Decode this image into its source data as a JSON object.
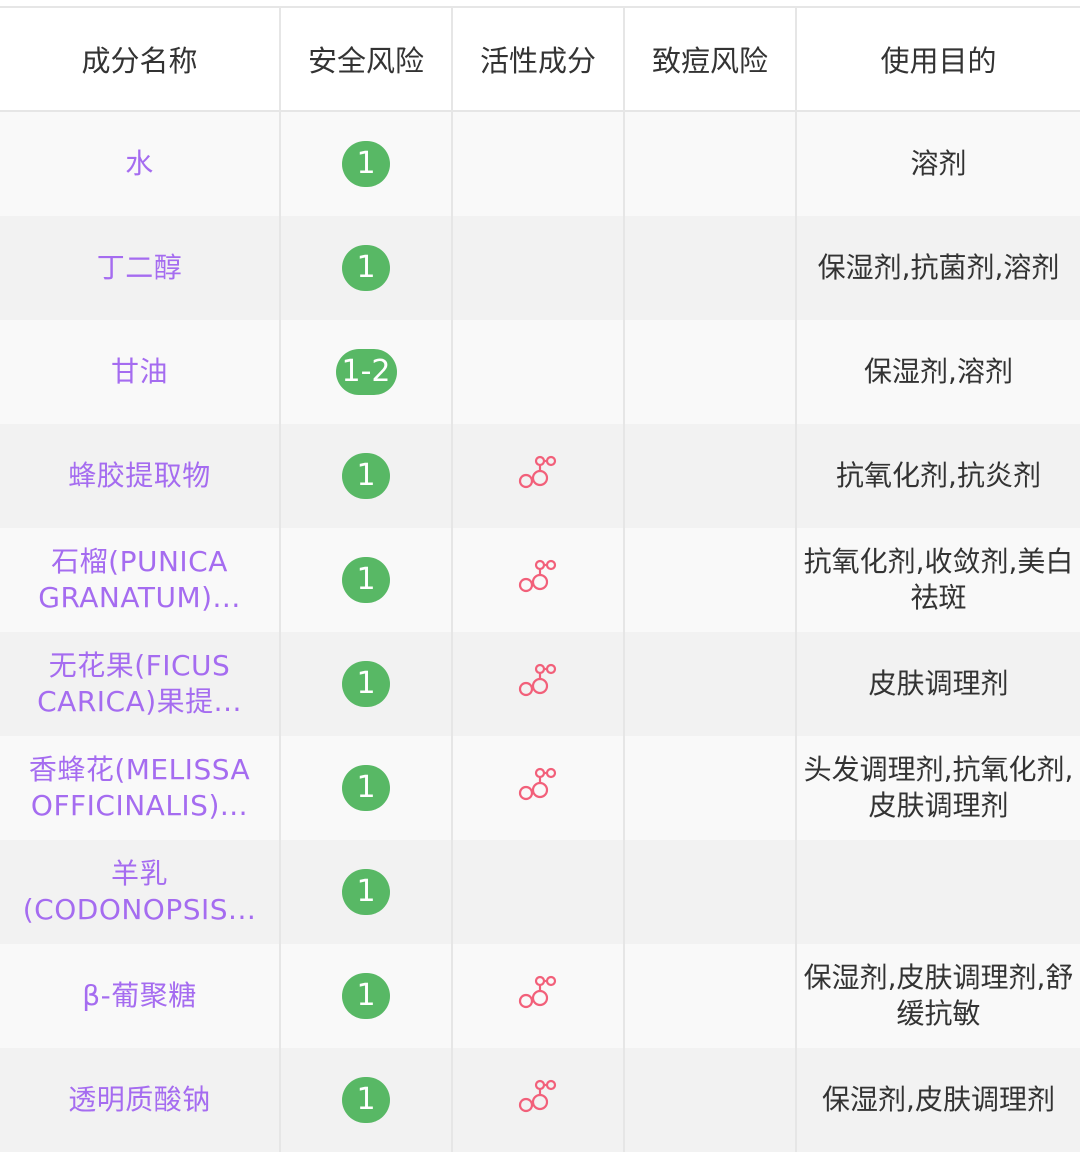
{
  "headers": [
    "成分名称",
    "安全风险",
    "活性成分",
    "致痘风险",
    "使用目的"
  ],
  "colors": {
    "name": "#a56cf0",
    "badge": "#58b865",
    "active_icon": "#f2607a"
  },
  "rows": [
    {
      "name": "水",
      "safety": "1",
      "active": false,
      "acne": "",
      "purpose": "溶剂"
    },
    {
      "name": "丁二醇",
      "safety": "1",
      "active": false,
      "acne": "",
      "purpose": "保湿剂,抗菌剂,溶剂"
    },
    {
      "name": "甘油",
      "safety": "1-2",
      "active": false,
      "acne": "",
      "purpose": "保湿剂,溶剂"
    },
    {
      "name": "蜂胶提取物",
      "safety": "1",
      "active": true,
      "acne": "",
      "purpose": "抗氧化剂,抗炎剂"
    },
    {
      "name": "石榴(PUNICA GRANATUM)...",
      "safety": "1",
      "active": true,
      "acne": "",
      "purpose": "抗氧化剂,收敛剂,美白祛斑"
    },
    {
      "name": "无花果(FICUS CARICA)果提...",
      "safety": "1",
      "active": true,
      "acne": "",
      "purpose": "皮肤调理剂"
    },
    {
      "name": "香蜂花(MELISSA OFFICINALIS)...",
      "safety": "1",
      "active": true,
      "acne": "",
      "purpose": "头发调理剂,抗氧化剂,皮肤调理剂"
    },
    {
      "name": "羊乳(CODONOPSIS...",
      "safety": "1",
      "active": false,
      "acne": "",
      "purpose": ""
    },
    {
      "name": "β-葡聚糖",
      "safety": "1",
      "active": true,
      "acne": "",
      "purpose": "保湿剂,皮肤调理剂,舒缓抗敏"
    },
    {
      "name": "透明质酸钠",
      "safety": "1",
      "active": true,
      "acne": "",
      "purpose": "保湿剂,皮肤调理剂"
    }
  ]
}
